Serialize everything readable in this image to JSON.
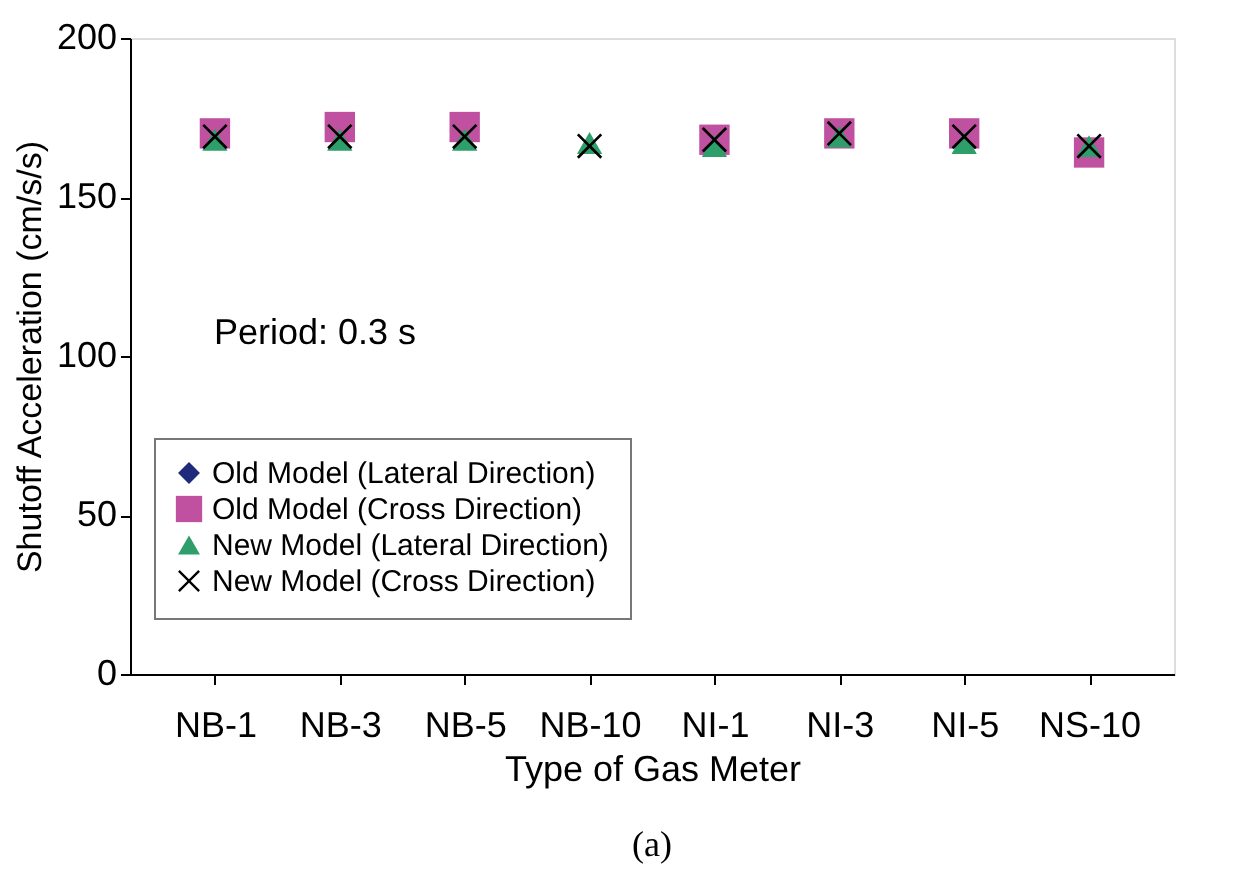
{
  "chart_data": {
    "type": "scatter",
    "xlabel": "Type of Gas Meter",
    "ylabel": "Shutoff Acceleration (cm/s/s)",
    "categories": [
      "NB-1",
      "NB-3",
      "NB-5",
      "NB-10",
      "NI-1",
      "NI-3",
      "NI-5",
      "NS-10"
    ],
    "series": [
      {
        "name": "Old Model (Lateral Direction)",
        "color": "#1f2a7a",
        "marker": "diamond",
        "values": [
          null,
          null,
          null,
          null,
          null,
          null,
          null,
          null
        ]
      },
      {
        "name": "Old Model (Cross Direction)",
        "color": "#c050a0",
        "marker": "square",
        "values": [
          170,
          172,
          172,
          null,
          168,
          170,
          170,
          164
        ]
      },
      {
        "name": "New Model (Lateral Direction)",
        "color": "#2e9e6a",
        "marker": "triangle",
        "values": [
          168,
          168,
          168,
          167,
          166,
          169,
          167,
          166
        ]
      },
      {
        "name": "New Model (Cross Direction)",
        "color": "#000000",
        "marker": "cross",
        "values": [
          169,
          169,
          169,
          166,
          168,
          170,
          169,
          166
        ]
      }
    ],
    "ylim": [
      0,
      200
    ],
    "yticks": [
      0,
      50,
      100,
      150,
      200
    ],
    "grid": false,
    "legend": "bottom left",
    "annotations": [
      "Period: 0.3 s",
      "(a)"
    ]
  }
}
